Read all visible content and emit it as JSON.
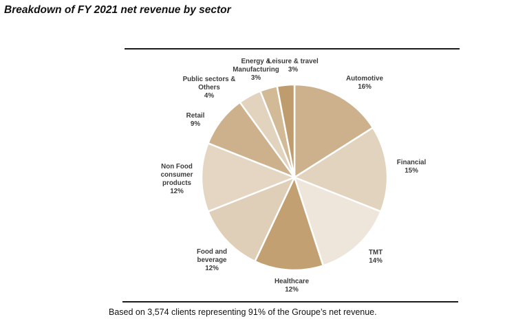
{
  "title": "Breakdown of FY 2021 net revenue by sector",
  "footnote": "Based on 3,574 clients representing 91% of the Groupe’s net revenue.",
  "chart_data": {
    "type": "pie",
    "title": "Breakdown of FY 2021 net revenue by sector",
    "start": "top",
    "direction": "clockwise",
    "slices": [
      {
        "name": "Automotive",
        "label_lines": [
          "Automotive",
          "16%"
        ],
        "value": 16,
        "color": "#CDB18C"
      },
      {
        "name": "Financial",
        "label_lines": [
          "Financial",
          "15%"
        ],
        "value": 15,
        "color": "#E2D3BF"
      },
      {
        "name": "TMT",
        "label_lines": [
          "TMT",
          "14%"
        ],
        "value": 14,
        "color": "#EEE6DA"
      },
      {
        "name": "Healthcare",
        "label_lines": [
          "Healthcare",
          "12%"
        ],
        "value": 12,
        "color": "#C2A072"
      },
      {
        "name": "Food and beverage",
        "label_lines": [
          "Food and",
          "beverage",
          "12%"
        ],
        "value": 12,
        "color": "#E0CFB8"
      },
      {
        "name": "Non Food consumer products",
        "label_lines": [
          "Non Food",
          "consumer",
          "products",
          "12%"
        ],
        "value": 12,
        "color": "#E4D6C3"
      },
      {
        "name": "Retail",
        "label_lines": [
          "Retail",
          "9%"
        ],
        "value": 9,
        "color": "#CDB18C"
      },
      {
        "name": "Public sectors & Others",
        "label_lines": [
          "Public sectors &",
          "Others",
          "4%"
        ],
        "value": 4,
        "color": "#E2D3BF"
      },
      {
        "name": "Energy & Manufacturing",
        "label_lines": [
          "Energy  &",
          "Manufacturing",
          "3%"
        ],
        "value": 3,
        "color": "#D2BA97"
      },
      {
        "name": "Leisure & travel",
        "label_lines": [
          "Leisure & travel",
          "3%"
        ],
        "value": 3,
        "color": "#BF9C6D"
      }
    ]
  }
}
